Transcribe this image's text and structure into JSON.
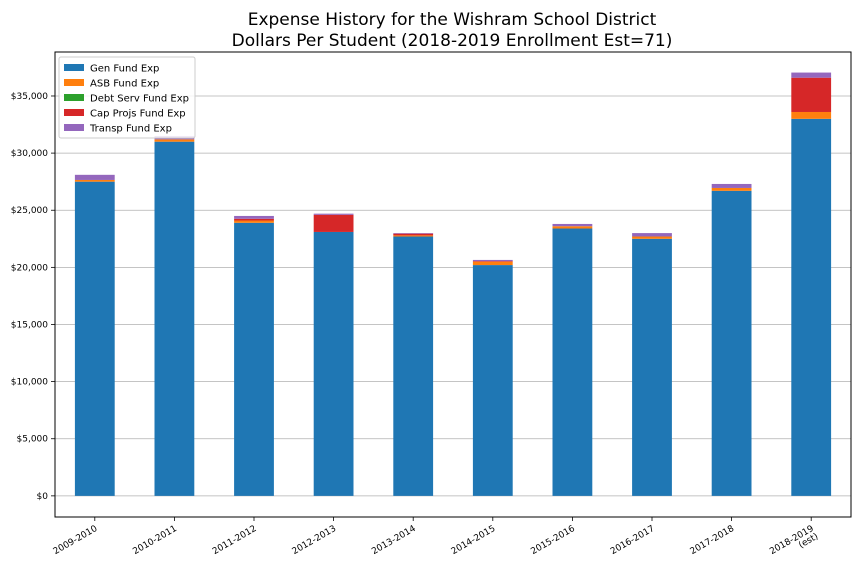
{
  "chart_data": {
    "type": "bar",
    "stacked": true,
    "title_lines": [
      "Expense History for the Wishram School District",
      "Dollars Per Student (2018-2019 Enrollment Est=71)"
    ],
    "xlabel": "",
    "ylabel": "",
    "categories": [
      [
        "2009-2010"
      ],
      [
        "2010-2011"
      ],
      [
        "2011-2012"
      ],
      [
        "2012-2013"
      ],
      [
        "2013-2014"
      ],
      [
        "2014-2015"
      ],
      [
        "2015-2016"
      ],
      [
        "2016-2017"
      ],
      [
        "2017-2018"
      ],
      [
        "2018-2019",
        "(est)"
      ]
    ],
    "series": [
      {
        "name": "Gen Fund Exp",
        "color": "#1f77b4",
        "values": [
          27500,
          31000,
          23900,
          23100,
          22700,
          20200,
          23400,
          22500,
          26700,
          33000
        ]
      },
      {
        "name": "ASB Fund Exp",
        "color": "#ff7f0e",
        "values": [
          150,
          200,
          200,
          0,
          100,
          300,
          200,
          200,
          250,
          600
        ]
      },
      {
        "name": "Debt Serv Fund Exp",
        "color": "#2ca02c",
        "values": [
          0,
          0,
          0,
          0,
          0,
          0,
          0,
          0,
          0,
          0
        ]
      },
      {
        "name": "Cap Projs Fund Exp",
        "color": "#d62728",
        "values": [
          0,
          0,
          150,
          1500,
          150,
          50,
          0,
          0,
          0,
          3000
        ]
      },
      {
        "name": "Transp Fund Exp",
        "color": "#9467bd",
        "values": [
          450,
          300,
          250,
          100,
          50,
          100,
          200,
          300,
          350,
          450
        ]
      }
    ],
    "yticks": [
      0,
      5000,
      10000,
      15000,
      20000,
      25000,
      30000,
      35000
    ],
    "ytick_labels": [
      "$0",
      "$5,000",
      "$10,000",
      "$15,000",
      "$20,000",
      "$25,000",
      "$30,000",
      "$35,000"
    ],
    "ylim": [
      -1850,
      38850
    ],
    "grid": "y",
    "legend_position": "top-left",
    "xtick_rotation": 30
  }
}
